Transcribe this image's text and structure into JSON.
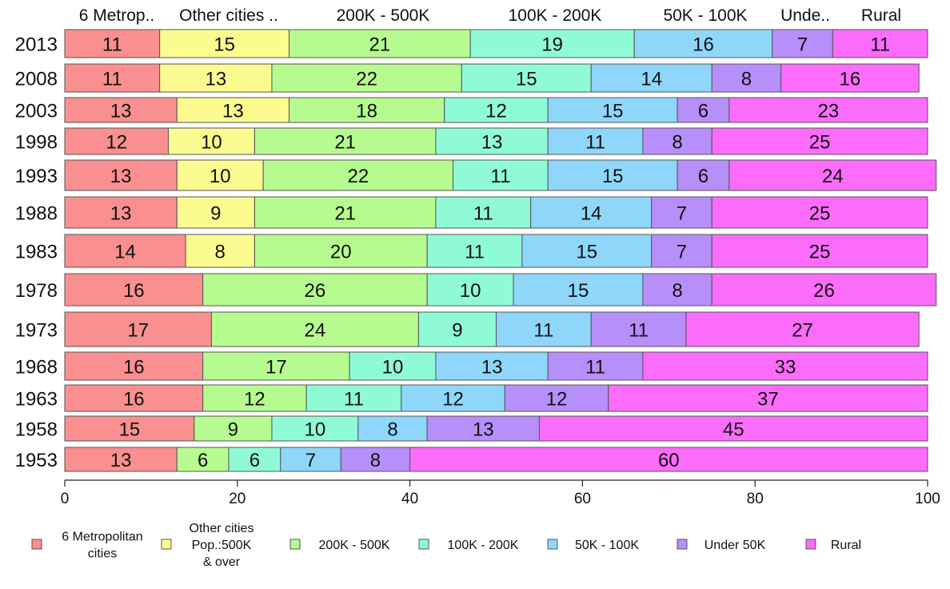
{
  "chart_data": {
    "type": "bar",
    "orientation": "horizontal",
    "stacked": true,
    "title": "",
    "xlabel": "",
    "ylabel": "",
    "xlim": [
      0,
      100
    ],
    "x_ticks": [
      0,
      20,
      40,
      60,
      80,
      100
    ],
    "grid": false,
    "legend_position": "bottom",
    "categories": [
      "2013",
      "2008",
      "2003",
      "1998",
      "1993",
      "1988",
      "1983",
      "1978",
      "1973",
      "1968",
      "1963",
      "1958",
      "1953"
    ],
    "column_headers": [
      "6 Metrop..",
      "Other cities ..",
      "200K - 500K",
      "100K - 200K",
      "50K - 100K",
      "Unde..",
      "Rural"
    ],
    "series": [
      {
        "name": "6 Metropolitan cities",
        "legend_lines": [
          "6 Metropolitan",
          "cities"
        ],
        "color": "#f98f8f",
        "values": [
          11,
          11,
          13,
          12,
          13,
          13,
          14,
          16,
          17,
          16,
          16,
          15,
          13
        ]
      },
      {
        "name": "Other cities Pop.:500K & over",
        "legend_lines": [
          "Other cities",
          "Pop.:500K",
          "& over"
        ],
        "color": "#fbfb8f",
        "values": [
          15,
          13,
          13,
          10,
          10,
          9,
          8,
          0,
          0,
          0,
          0,
          0,
          0
        ]
      },
      {
        "name": "200K - 500K",
        "legend_lines": [
          "200K - 500K"
        ],
        "color": "#b6fb8f",
        "values": [
          21,
          22,
          18,
          21,
          22,
          21,
          20,
          26,
          24,
          17,
          12,
          9,
          6
        ]
      },
      {
        "name": "100K - 200K",
        "legend_lines": [
          "100K - 200K"
        ],
        "color": "#8ffbd6",
        "values": [
          19,
          15,
          12,
          13,
          11,
          11,
          11,
          10,
          9,
          10,
          11,
          10,
          6
        ]
      },
      {
        "name": "50K - 100K",
        "legend_lines": [
          "50K - 100K"
        ],
        "color": "#8fd6fb",
        "values": [
          16,
          14,
          15,
          11,
          15,
          14,
          15,
          15,
          11,
          13,
          12,
          8,
          7
        ]
      },
      {
        "name": "Under 50K",
        "legend_lines": [
          "Under 50K"
        ],
        "color": "#b68ffb",
        "values": [
          7,
          8,
          6,
          8,
          6,
          7,
          7,
          8,
          11,
          11,
          12,
          13,
          8
        ]
      },
      {
        "name": "Rural",
        "legend_lines": [
          "Rural"
        ],
        "color": "#fb6cfb",
        "values": [
          11,
          16,
          23,
          25,
          24,
          25,
          25,
          26,
          27,
          33,
          37,
          45,
          60
        ]
      }
    ],
    "segment_labels": [
      [
        "11",
        "15",
        "21",
        "19",
        "16",
        "7",
        "11"
      ],
      [
        "11",
        "13",
        "22",
        "15",
        "14",
        "8",
        "16"
      ],
      [
        "13",
        "13",
        "18",
        "12",
        "15",
        "6",
        "23"
      ],
      [
        "12",
        "10",
        "21",
        "13",
        "11",
        "8",
        "25"
      ],
      [
        "13",
        "10",
        "22",
        "11",
        "15",
        "6",
        "24"
      ],
      [
        "13",
        "9",
        "21",
        "11",
        "14",
        "7",
        "25"
      ],
      [
        "14",
        "8",
        "20",
        "11",
        "15",
        "7",
        "25"
      ],
      [
        "16",
        "",
        "26",
        "10",
        "15",
        "8",
        "26"
      ],
      [
        "17",
        "",
        "24",
        "9",
        "11",
        "11",
        "27"
      ],
      [
        "16",
        "",
        "17",
        "10",
        "13",
        "11",
        "33"
      ],
      [
        "16",
        "",
        "12",
        "11",
        "12",
        "12",
        "37"
      ],
      [
        "15",
        "",
        "9",
        "10",
        "8",
        "13",
        "45"
      ],
      [
        "13",
        "",
        "6",
        "6",
        "7",
        "8",
        "60"
      ]
    ]
  }
}
